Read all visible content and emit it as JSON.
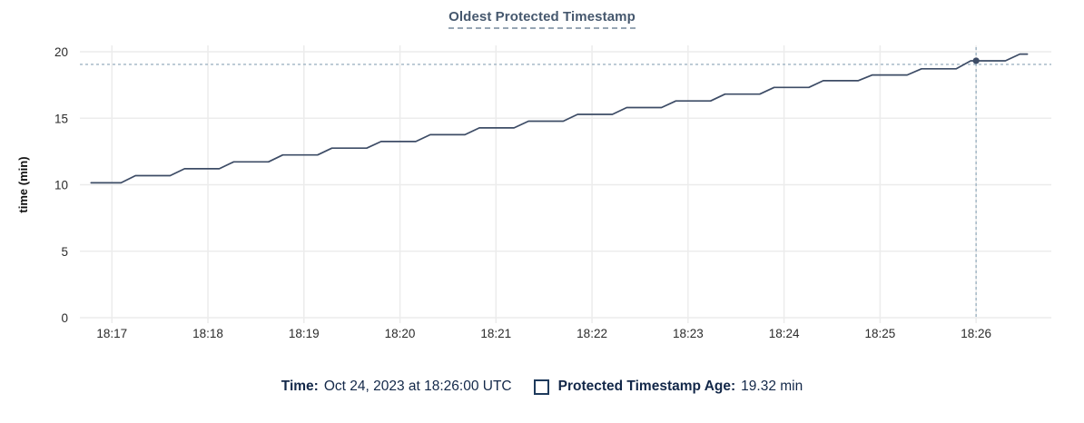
{
  "title": "Oldest Protected Timestamp",
  "footer": {
    "time_label": "Time:",
    "time_value": "Oct 24, 2023 at 18:26:00 UTC",
    "series_label": "Protected Timestamp Age:",
    "series_value": "19.32 min"
  },
  "colors": {
    "line": "#3d4c66",
    "grid": "#ececec",
    "crosshair": "#9fb4c4",
    "tick_text": "#2b2b2b",
    "axis_title_text": "#111111",
    "title_text": "#46586e",
    "footer_text": "#132849"
  },
  "chart_data": {
    "type": "line",
    "title": "Oldest Protected Timestamp",
    "xlabel": "",
    "ylabel": "time (min)",
    "ylim": [
      0,
      20
    ],
    "yticks": [
      0,
      5,
      10,
      15,
      20
    ],
    "x_unit": "seconds after 18:16:00 UTC",
    "x_range": [
      40,
      647
    ],
    "xticks": [
      {
        "s": 60,
        "label": "18:17"
      },
      {
        "s": 120,
        "label": "18:18"
      },
      {
        "s": 180,
        "label": "18:19"
      },
      {
        "s": 240,
        "label": "18:20"
      },
      {
        "s": 300,
        "label": "18:21"
      },
      {
        "s": 360,
        "label": "18:22"
      },
      {
        "s": 420,
        "label": "18:23"
      },
      {
        "s": 480,
        "label": "18:24"
      },
      {
        "s": 540,
        "label": "18:25"
      },
      {
        "s": 600,
        "label": "18:26"
      }
    ],
    "grid": true,
    "legend_position": "bottom",
    "series": [
      {
        "name": "Protected Timestamp Age",
        "color": "#3d4c66",
        "points": [
          [
            47,
            10.14
          ],
          [
            65.7,
            10.14
          ],
          [
            74.7,
            10.68
          ],
          [
            96.4,
            10.68
          ],
          [
            105.4,
            11.2
          ],
          [
            127.1,
            11.2
          ],
          [
            136.1,
            11.72
          ],
          [
            157.8,
            11.72
          ],
          [
            166.8,
            12.24
          ],
          [
            188.5,
            12.24
          ],
          [
            197.5,
            12.75
          ],
          [
            219.2,
            12.75
          ],
          [
            228.2,
            13.25
          ],
          [
            249.9,
            13.25
          ],
          [
            258.9,
            13.76
          ],
          [
            280.6,
            13.76
          ],
          [
            289.6,
            14.27
          ],
          [
            311.3,
            14.27
          ],
          [
            320.3,
            14.78
          ],
          [
            342,
            14.78
          ],
          [
            351,
            15.29
          ],
          [
            372.7,
            15.29
          ],
          [
            381.7,
            15.8
          ],
          [
            403.4,
            15.8
          ],
          [
            412.4,
            16.3
          ],
          [
            434.1,
            16.3
          ],
          [
            443.1,
            16.81
          ],
          [
            464.8,
            16.81
          ],
          [
            473.8,
            17.32
          ],
          [
            495.5,
            17.32
          ],
          [
            504.5,
            17.82
          ],
          [
            526.2,
            17.82
          ],
          [
            535.2,
            18.25
          ],
          [
            556.9,
            18.25
          ],
          [
            565.9,
            18.72
          ],
          [
            587.6,
            18.72
          ],
          [
            596.6,
            19.32
          ],
          [
            618.3,
            19.32
          ],
          [
            627.3,
            19.82
          ],
          [
            632,
            19.82
          ]
        ]
      }
    ],
    "crosshair": {
      "s": 600,
      "value": 19.32,
      "time_label": "18:26:00"
    }
  }
}
